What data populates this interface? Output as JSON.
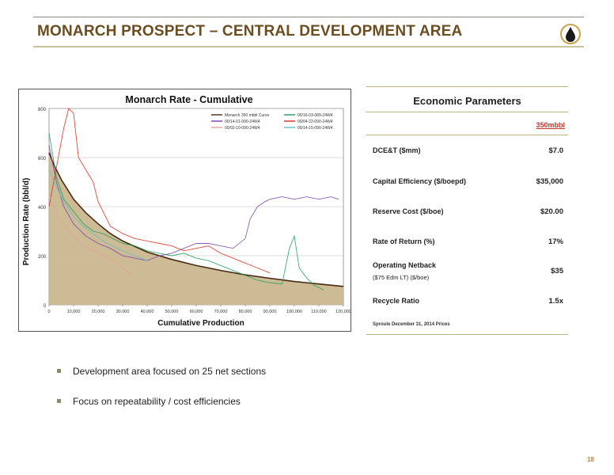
{
  "slide": {
    "title": "MONARCH PROSPECT – CENTRAL DEVELOPMENT AREA",
    "page_number": "18",
    "logo_icon": "oil-drop-icon",
    "accent_color": "#6b4d1f"
  },
  "economics": {
    "title": "Economic Parameters",
    "column_header": "350mbbl",
    "rows": [
      {
        "label": "DCE&T ($mm)",
        "sub": "",
        "value": "$7.0"
      },
      {
        "label": "Capital Efficiency ($/boepd)",
        "sub": "",
        "value": "$35,000"
      },
      {
        "label": "Reserve Cost ($/boe)",
        "sub": "",
        "value": "$20.00"
      },
      {
        "label": "Rate of Return (%)",
        "sub": "",
        "value": "17%"
      },
      {
        "label": "Operating Netback",
        "sub": "($75 Edm LT) ($/boe)",
        "value": "$35"
      },
      {
        "label": "Recycle Ratio",
        "sub": "",
        "value": "1.5x"
      }
    ],
    "note": "Sproule December 31, 2014 Prices"
  },
  "bullets": [
    "Development area focused on 25 net sections",
    "Focus on repeatability / cost efficiencies"
  ],
  "chart_data": {
    "type": "line",
    "title": "Monarch Rate - Cumulative",
    "xlabel": "Cumulative Production",
    "ylabel": "Production Rate (bbl/d)",
    "xlim": [
      0,
      120000
    ],
    "ylim": [
      0,
      800
    ],
    "x_ticks": [
      "0",
      "10,000",
      "20,000",
      "30,000",
      "40,000",
      "50,000",
      "60,000",
      "70,000",
      "80,000",
      "90,000",
      "100,000",
      "110,000",
      "120,000"
    ],
    "y_ticks": [
      "0",
      "200",
      "400",
      "600",
      "800"
    ],
    "legend_position": "top-right",
    "series": [
      {
        "name": "Monarch 350 mbbl Curve",
        "color": "#4a2a12",
        "style": "curve-area",
        "fill": "#c8b48a",
        "x": [
          0,
          2000,
          5000,
          10000,
          15000,
          20000,
          25000,
          30000,
          40000,
          50000,
          60000,
          70000,
          80000,
          90000,
          100000,
          110000,
          120000
        ],
        "y": [
          620,
          570,
          510,
          430,
          375,
          330,
          290,
          260,
          215,
          185,
          160,
          140,
          122,
          108,
          95,
          85,
          75
        ]
      },
      {
        "name": "00/16-03-089-24W4",
        "color": "#1e9e5a",
        "x": [
          0,
          3000,
          6000,
          10000,
          14000,
          18000,
          22000,
          26000,
          30000,
          35000,
          40000,
          45000,
          50000,
          55000,
          60000,
          65000,
          70000,
          75000,
          80000,
          85000,
          90000,
          95000,
          98000,
          100000,
          102000,
          105000,
          108000,
          112000
        ],
        "y": [
          700,
          520,
          430,
          380,
          330,
          300,
          290,
          270,
          250,
          240,
          220,
          210,
          200,
          210,
          190,
          180,
          160,
          140,
          120,
          100,
          90,
          85,
          230,
          280,
          150,
          110,
          80,
          60
        ]
      },
      {
        "name": "00/14-01-090-24W4",
        "color": "#7b3fa8",
        "x": [
          0,
          3000,
          6000,
          10000,
          15000,
          20000,
          25000,
          30000,
          35000,
          40000,
          45000,
          50000,
          55000,
          60000,
          65000,
          70000,
          75000,
          80000,
          82000,
          85000,
          88000,
          90000,
          95000,
          100000,
          105000,
          110000,
          115000,
          118000
        ],
        "y": [
          650,
          500,
          400,
          330,
          280,
          250,
          230,
          200,
          190,
          180,
          200,
          210,
          230,
          250,
          250,
          240,
          230,
          270,
          350,
          400,
          420,
          430,
          440,
          430,
          440,
          430,
          440,
          430
        ]
      },
      {
        "name": "00/04-22-090-24W4",
        "color": "#d62b1f",
        "x": [
          0,
          3000,
          6000,
          8000,
          10000,
          12000,
          15000,
          18000,
          20000,
          22000,
          25000,
          30000,
          35000,
          40000,
          45000,
          50000,
          55000,
          60000,
          65000,
          70000,
          75000,
          80000,
          85000,
          90000
        ],
        "y": [
          400,
          560,
          720,
          800,
          780,
          600,
          550,
          500,
          420,
          380,
          320,
          290,
          270,
          260,
          250,
          240,
          220,
          230,
          240,
          210,
          190,
          170,
          150,
          130
        ]
      },
      {
        "name": "00/02-10-090-24W4",
        "color": "#e8a0a0",
        "x": [
          0,
          3000,
          6000,
          10000,
          14000,
          18000,
          22000,
          26000,
          30000,
          34000
        ],
        "y": [
          450,
          380,
          320,
          280,
          240,
          220,
          200,
          180,
          150,
          120
        ]
      },
      {
        "name": "00/14-15-090-24W4",
        "color": "#5bc0c8",
        "x": [
          0,
          3000,
          6000,
          10000,
          14000,
          18000,
          22000,
          26000,
          30000,
          35000,
          40000
        ],
        "y": [
          550,
          480,
          420,
          360,
          320,
          290,
          260,
          240,
          220,
          200,
          180
        ]
      }
    ]
  }
}
